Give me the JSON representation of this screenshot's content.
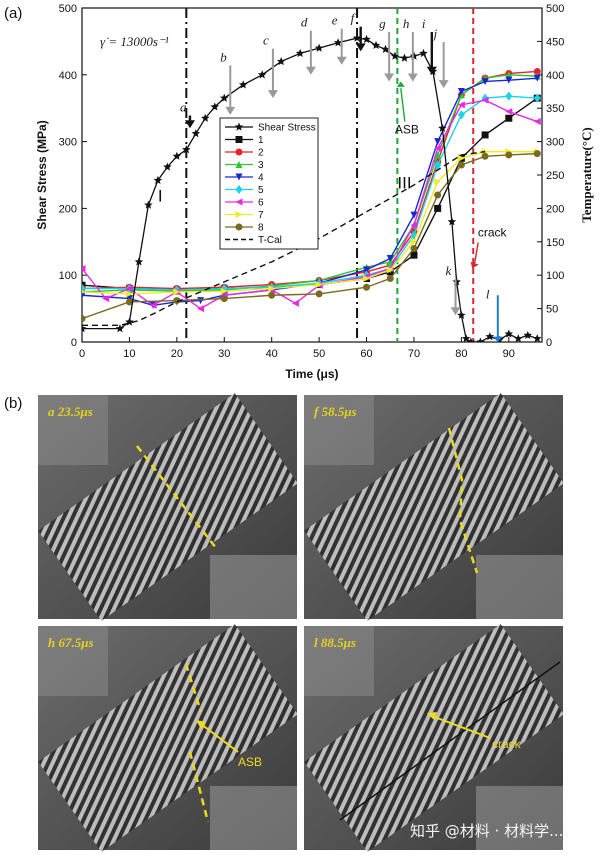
{
  "panel_a_label": "(a)",
  "panel_b_label": "(b)",
  "strain_rate_label": "γ̇ = 13000s⁻¹",
  "chart_data": {
    "type": "line",
    "xlabel": "Time (μs)",
    "ylabel": "Shear Stress (MPa)",
    "y2label": "Temperature(°C)",
    "xlim": [
      0,
      97
    ],
    "ylim": [
      0,
      500
    ],
    "y2lim": [
      0,
      500
    ],
    "x_ticks": [
      0,
      10,
      20,
      30,
      40,
      50,
      60,
      70,
      80,
      90
    ],
    "y_ticks": [
      0,
      100,
      200,
      300,
      400,
      500
    ],
    "y2_ticks": [
      0,
      50,
      100,
      150,
      200,
      250,
      300,
      350,
      400,
      450,
      500
    ],
    "legend": [
      {
        "name": "Shear Stress",
        "color": "#111111",
        "marker": "star"
      },
      {
        "name": "1",
        "color": "#111111",
        "marker": "square"
      },
      {
        "name": "2",
        "color": "#e8232a",
        "marker": "circle"
      },
      {
        "name": "3",
        "color": "#2fc72f",
        "marker": "triangle-up"
      },
      {
        "name": "4",
        "color": "#1a26d6",
        "marker": "triangle-down"
      },
      {
        "name": "5",
        "color": "#19d3e6",
        "marker": "diamond"
      },
      {
        "name": "6",
        "color": "#e62ae6",
        "marker": "triangle-left"
      },
      {
        "name": "7",
        "color": "#f0ea2a",
        "marker": "triangle-right"
      },
      {
        "name": "8",
        "color": "#7a6a1e",
        "marker": "circle"
      },
      {
        "name": "T-Cal",
        "color": "#111111",
        "marker": "dashed"
      }
    ],
    "series": [
      {
        "name": "Shear Stress",
        "axis": "left",
        "color": "#111111",
        "x": [
          0,
          8,
          10,
          12,
          14,
          16,
          18,
          20,
          22,
          24,
          26,
          28,
          30,
          34,
          38,
          42,
          46,
          50,
          54,
          58,
          60,
          62,
          64,
          66,
          68,
          70,
          72,
          74,
          76,
          78,
          79,
          80,
          81,
          82,
          84,
          86,
          88,
          90,
          92,
          94,
          96
        ],
        "y": [
          20,
          20,
          30,
          120,
          205,
          242,
          262,
          278,
          288,
          312,
          335,
          352,
          365,
          385,
          400,
          420,
          432,
          440,
          448,
          455,
          453,
          444,
          438,
          428,
          425,
          428,
          432,
          405,
          320,
          180,
          90,
          40,
          5,
          0,
          0,
          8,
          3,
          12,
          5,
          10,
          5
        ]
      },
      {
        "name": "1",
        "axis": "right",
        "color": "#111111",
        "x": [
          0,
          10,
          20,
          30,
          40,
          50,
          60,
          65,
          70,
          75,
          80,
          85,
          90,
          96
        ],
        "y": [
          85,
          80,
          78,
          80,
          82,
          86,
          95,
          105,
          130,
          200,
          275,
          310,
          335,
          365
        ]
      },
      {
        "name": "2",
        "axis": "right",
        "color": "#e8232a",
        "x": [
          0,
          10,
          20,
          30,
          40,
          50,
          60,
          65,
          70,
          75,
          80,
          85,
          90,
          96
        ],
        "y": [
          80,
          82,
          80,
          82,
          86,
          92,
          105,
          115,
          165,
          270,
          370,
          395,
          402,
          405
        ]
      },
      {
        "name": "3",
        "axis": "right",
        "color": "#2fc72f",
        "x": [
          0,
          10,
          20,
          30,
          40,
          50,
          60,
          65,
          70,
          75,
          80,
          85,
          90,
          96
        ],
        "y": [
          75,
          78,
          76,
          78,
          84,
          92,
          112,
          120,
          175,
          280,
          370,
          395,
          400,
          398
        ]
      },
      {
        "name": "4",
        "axis": "right",
        "color": "#1a26d6",
        "x": [
          0,
          10,
          15,
          20,
          25,
          30,
          40,
          50,
          60,
          65,
          70,
          75,
          80,
          85,
          90,
          96
        ],
        "y": [
          70,
          65,
          55,
          60,
          62,
          70,
          78,
          88,
          108,
          125,
          190,
          300,
          375,
          390,
          392,
          395
        ]
      },
      {
        "name": "5",
        "axis": "right",
        "color": "#19d3e6",
        "x": [
          0,
          10,
          20,
          30,
          40,
          50,
          60,
          65,
          70,
          75,
          80,
          85,
          90,
          96
        ],
        "y": [
          80,
          80,
          78,
          80,
          82,
          88,
          100,
          110,
          160,
          265,
          340,
          365,
          368,
          365
        ]
      },
      {
        "name": "6",
        "axis": "right",
        "color": "#e62ae6",
        "x": [
          0,
          5,
          10,
          15,
          20,
          25,
          30,
          40,
          45,
          50,
          60,
          65,
          70,
          75,
          80,
          85,
          90,
          96
        ],
        "y": [
          110,
          65,
          80,
          55,
          75,
          50,
          70,
          78,
          58,
          85,
          98,
          110,
          175,
          290,
          355,
          362,
          345,
          330
        ]
      },
      {
        "name": "7",
        "axis": "right",
        "color": "#f0ea2a",
        "x": [
          0,
          10,
          20,
          30,
          40,
          50,
          60,
          65,
          70,
          75,
          80,
          85,
          90,
          96
        ],
        "y": [
          75,
          72,
          75,
          76,
          80,
          86,
          95,
          108,
          150,
          240,
          275,
          285,
          285,
          285
        ]
      },
      {
        "name": "8",
        "axis": "right",
        "color": "#7a6a1e",
        "x": [
          0,
          10,
          20,
          30,
          40,
          50,
          60,
          65,
          70,
          75,
          80,
          85,
          90,
          96
        ],
        "y": [
          35,
          60,
          62,
          65,
          70,
          72,
          82,
          95,
          140,
          220,
          265,
          278,
          280,
          282
        ]
      },
      {
        "name": "T-Cal",
        "axis": "right",
        "color": "#111111",
        "dashed": true,
        "x": [
          0,
          8,
          12,
          15,
          20,
          25,
          30,
          40,
          50,
          60,
          70,
          80,
          85
        ],
        "y": [
          25,
          25,
          32,
          42,
          60,
          75,
          90,
          120,
          155,
          195,
          235,
          280,
          285
        ]
      }
    ],
    "stage_labels": [
      {
        "text": "I",
        "x": 16.5,
        "y": 210
      },
      {
        "text": "II",
        "x": 34,
        "y": 215
      },
      {
        "text": "III",
        "x": 68,
        "y": 230
      }
    ],
    "vlines": [
      {
        "x": 22,
        "style": "dash-dot",
        "color": "#111111"
      },
      {
        "x": 58,
        "style": "dash-dot",
        "color": "#111111"
      },
      {
        "x": 66.5,
        "style": "dashed",
        "color": "#1aa83a"
      },
      {
        "x": 82.5,
        "style": "dashed",
        "color": "#d8262a"
      }
    ],
    "event_labels": [
      {
        "text": "a",
        "x": 21.5,
        "y": 345,
        "arrow_to": 320,
        "dark": true
      },
      {
        "text": "b",
        "x": 30,
        "y": 420,
        "arrow_to": 340,
        "dark": false
      },
      {
        "text": "c",
        "x": 39,
        "y": 445,
        "arrow_to": 365,
        "dark": false
      },
      {
        "text": "d",
        "x": 47,
        "y": 472,
        "arrow_to": 400,
        "dark": false
      },
      {
        "text": "e",
        "x": 53.5,
        "y": 475,
        "arrow_to": 415,
        "dark": false
      },
      {
        "text": "f",
        "x": 57.5,
        "y": 478,
        "arrow_to": 435,
        "dark": true
      },
      {
        "text": "g",
        "x": 63.5,
        "y": 470,
        "arrow_to": 390,
        "dark": false
      },
      {
        "text": "h",
        "x": 68.5,
        "y": 470,
        "arrow_to": 390,
        "dark": false
      },
      {
        "text": "i",
        "x": 72.5,
        "y": 470,
        "arrow_to": 400,
        "dark": true
      },
      {
        "text": "j",
        "x": 75,
        "y": 455,
        "arrow_to": 380,
        "dark": false
      },
      {
        "text": "k",
        "x": 77.5,
        "y": 100,
        "arrow_to": 40,
        "dark": false
      },
      {
        "text": "l",
        "x": 86,
        "y": 65,
        "arrow_to": 0,
        "dark": false
      }
    ],
    "annotations": [
      {
        "text": "ASB",
        "x": 68.5,
        "y": 312,
        "color": "#1aa83a"
      },
      {
        "text": "crack",
        "x": 86.5,
        "y": 158,
        "color": "#d8262a"
      }
    ]
  },
  "photos": [
    {
      "label": "a  23.5μs",
      "annotation": ""
    },
    {
      "label": "f  58.5μs",
      "annotation": ""
    },
    {
      "label": "h  67.5μs",
      "annotation": "ASB"
    },
    {
      "label": "l  88.5μs",
      "annotation": "crack"
    }
  ],
  "watermark": "知乎 @材料 · 材料学..."
}
